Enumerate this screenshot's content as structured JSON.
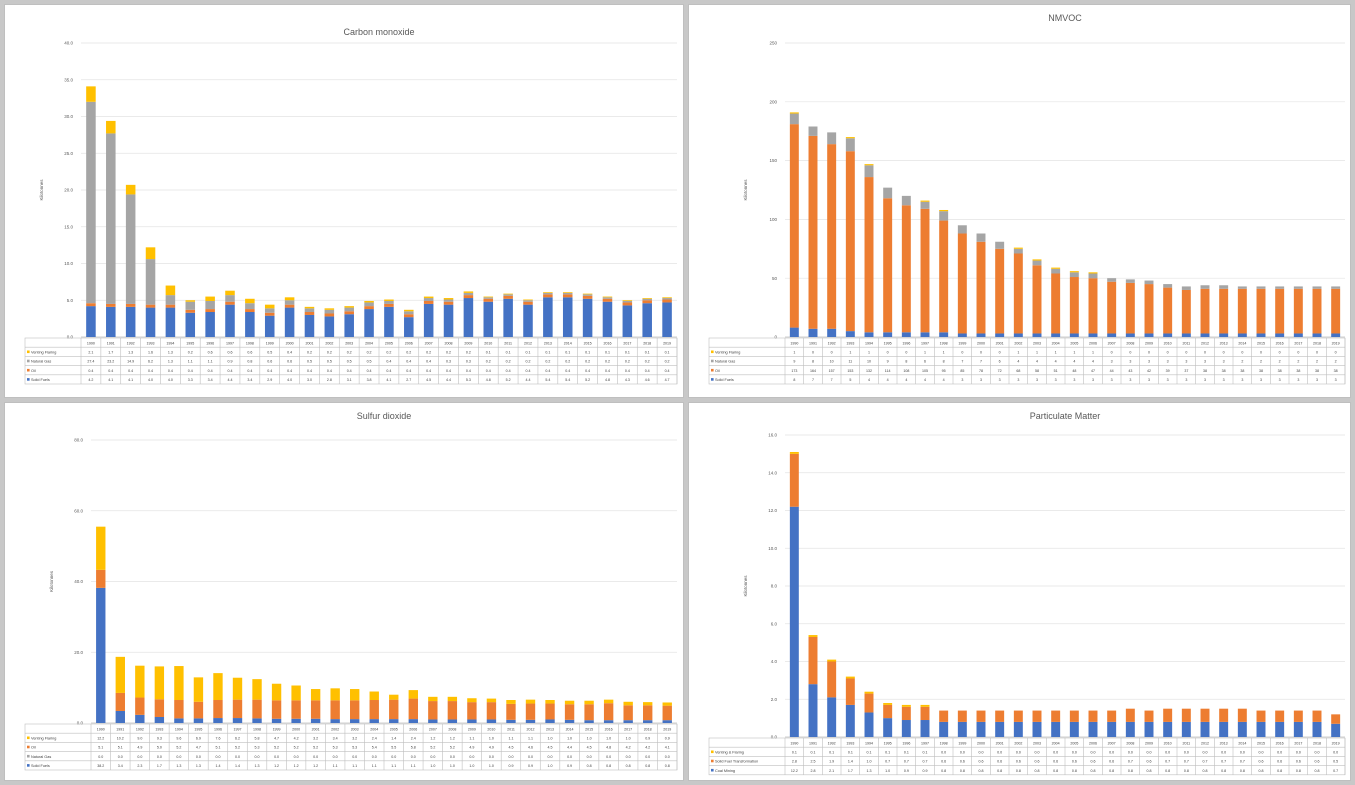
{
  "colors": {
    "blue": "#4472c4",
    "orange": "#ed7d31",
    "gray": "#a5a5a5",
    "yellow": "#ffc000"
  },
  "chart_data": [
    {
      "type": "bar",
      "stacked": true,
      "title": "Carbon monoxide",
      "ylabel": "Kilotonnes",
      "ylim": [
        0,
        40
      ],
      "yticks": [
        "0.0",
        "5.0",
        "10.0",
        "15.0",
        "20.0",
        "25.0",
        "30.0",
        "35.0",
        "40.0"
      ],
      "categories": [
        "1990",
        "1991",
        "1992",
        "1993",
        "1994",
        "1995",
        "1996",
        "1997",
        "1998",
        "1999",
        "2000",
        "2001",
        "2002",
        "2003",
        "2004",
        "2005",
        "2006",
        "2007",
        "2008",
        "2009",
        "2010",
        "2011",
        "2012",
        "2013",
        "2014",
        "2015",
        "2016",
        "2017",
        "2018",
        "2019"
      ],
      "series": [
        {
          "name": "Solid Fuels",
          "color": "#4472c4",
          "values": [
            4.2,
            4.1,
            4.1,
            4.0,
            4.0,
            3.3,
            3.4,
            4.4,
            3.4,
            2.9,
            4.0,
            3.0,
            2.8,
            3.1,
            3.8,
            4.1,
            2.7,
            4.5,
            4.4,
            5.3,
            4.8,
            5.2,
            4.4,
            5.4,
            5.4,
            5.2,
            4.8,
            4.3,
            4.6,
            4.7
          ]
        },
        {
          "name": "Oil",
          "color": "#ed7d31",
          "values": [
            0.4,
            0.4,
            0.4,
            0.4,
            0.4,
            0.4,
            0.4,
            0.4,
            0.4,
            0.4,
            0.4,
            0.4,
            0.4,
            0.4,
            0.4,
            0.4,
            0.4,
            0.4,
            0.4,
            0.4,
            0.4,
            0.4,
            0.4,
            0.4,
            0.4,
            0.4,
            0.4,
            0.4,
            0.4,
            0.4
          ]
        },
        {
          "name": "Natural Gas",
          "color": "#a5a5a5",
          "values": [
            27.4,
            23.2,
            14.9,
            6.2,
            1.3,
            1.1,
            1.1,
            0.9,
            0.8,
            0.6,
            0.6,
            0.5,
            0.5,
            0.5,
            0.5,
            0.4,
            0.4,
            0.4,
            0.3,
            0.3,
            0.2,
            0.2,
            0.2,
            0.2,
            0.2,
            0.2,
            0.2,
            0.2,
            0.2,
            0.2
          ]
        },
        {
          "name": "Venting Flaring",
          "color": "#ffc000",
          "values": [
            2.1,
            1.7,
            1.3,
            1.6,
            1.3,
            0.2,
            0.6,
            0.6,
            0.6,
            0.5,
            0.4,
            0.2,
            0.2,
            0.2,
            0.2,
            0.2,
            0.2,
            0.2,
            0.2,
            0.2,
            0.1,
            0.1,
            0.1,
            0.1,
            0.1,
            0.1,
            0.1,
            0.1,
            0.1,
            0.1
          ]
        }
      ]
    },
    {
      "type": "bar",
      "stacked": true,
      "title": "NMVOC",
      "ylabel": "Kilotonnes",
      "ylim": [
        0,
        250
      ],
      "yticks": [
        "0",
        "50",
        "100",
        "150",
        "200",
        "250"
      ],
      "categories": [
        "1990",
        "1991",
        "1992",
        "1993",
        "1994",
        "1995",
        "1996",
        "1997",
        "1998",
        "1999",
        "2000",
        "2001",
        "2002",
        "2003",
        "2004",
        "2005",
        "2006",
        "2007",
        "2008",
        "2009",
        "2010",
        "2011",
        "2012",
        "2013",
        "2014",
        "2015",
        "2016",
        "2017",
        "2018",
        "2019"
      ],
      "series": [
        {
          "name": "Solid Fuels",
          "color": "#4472c4",
          "values": [
            8,
            7,
            7,
            5,
            4,
            4,
            4,
            4,
            4,
            3,
            3,
            3,
            3,
            3,
            3,
            3,
            3,
            3,
            3,
            3,
            3,
            3,
            3,
            3,
            3,
            3,
            3,
            3,
            3,
            3
          ]
        },
        {
          "name": "Oil",
          "color": "#ed7d31",
          "values": [
            173,
            164,
            157,
            153,
            132,
            114,
            108,
            105,
            95,
            85,
            78,
            72,
            68,
            58,
            51,
            48,
            47,
            44,
            43,
            42,
            39,
            37,
            38,
            38,
            38,
            38,
            38,
            38,
            38,
            38
          ]
        },
        {
          "name": "Natural Gas",
          "color": "#a5a5a5",
          "values": [
            9,
            8,
            10,
            11,
            10,
            9,
            8,
            6,
            8,
            7,
            7,
            6,
            4,
            4,
            4,
            4,
            4,
            3,
            3,
            3,
            3,
            3,
            3,
            3,
            2,
            2,
            2,
            2,
            2,
            2
          ]
        },
        {
          "name": "Venting Flaring",
          "color": "#ffc000",
          "values": [
            1,
            0,
            0,
            1,
            1,
            0,
            0,
            1,
            1,
            0,
            0,
            0,
            1,
            1,
            1,
            1,
            1,
            0,
            0,
            0,
            0,
            0,
            0,
            0,
            0,
            0,
            0,
            0,
            0,
            0
          ]
        }
      ]
    },
    {
      "type": "bar",
      "stacked": true,
      "title": "Sulfur dioxide",
      "ylabel": "Kilotonnes",
      "ylim": [
        0,
        80
      ],
      "yticks": [
        "0.0",
        "20.0",
        "40.0",
        "60.0",
        "80.0"
      ],
      "categories": [
        "1990",
        "1991",
        "1992",
        "1993",
        "1994",
        "1995",
        "1996",
        "1997",
        "1998",
        "1999",
        "2000",
        "2001",
        "2002",
        "2003",
        "2004",
        "2005",
        "2006",
        "2007",
        "2008",
        "2009",
        "2010",
        "2011",
        "2012",
        "2013",
        "2014",
        "2015",
        "2016",
        "2017",
        "2018",
        "2019"
      ],
      "series": [
        {
          "name": "Solid Fuels",
          "color": "#4472c4",
          "values": [
            38.2,
            3.4,
            2.3,
            1.7,
            1.3,
            1.3,
            1.4,
            1.4,
            1.3,
            1.2,
            1.2,
            1.2,
            1.1,
            1.1,
            1.1,
            1.1,
            1.1,
            1.0,
            1.0,
            1.0,
            1.0,
            0.9,
            0.9,
            1.0,
            0.9,
            0.8,
            0.8,
            0.8,
            0.8,
            0.8
          ]
        },
        {
          "name": "Natural Gas",
          "color": "#a5a5a5",
          "values": [
            0.0,
            0.0,
            0.0,
            0.0,
            0.0,
            0.0,
            0.0,
            0.0,
            0.0,
            0.0,
            0.0,
            0.0,
            0.0,
            0.0,
            0.0,
            0.0,
            0.0,
            0.0,
            0.0,
            0.0,
            0.0,
            0.0,
            0.0,
            0.0,
            0.0,
            0.0,
            0.0,
            0.0,
            0.0,
            0.0
          ]
        },
        {
          "name": "Oil",
          "color": "#ed7d31",
          "values": [
            5.1,
            5.1,
            4.9,
            5.0,
            5.2,
            4.7,
            5.1,
            5.2,
            5.3,
            5.2,
            5.2,
            5.2,
            5.3,
            5.3,
            5.4,
            5.5,
            5.8,
            5.2,
            5.2,
            4.9,
            4.9,
            4.5,
            4.6,
            4.5,
            4.4,
            4.5,
            4.8,
            4.2,
            4.2,
            4.1
          ]
        },
        {
          "name": "Venting Flaring",
          "color": "#ffc000",
          "values": [
            12.2,
            10.2,
            9.0,
            9.3,
            9.6,
            6.9,
            7.6,
            6.2,
            5.8,
            4.7,
            4.2,
            3.2,
            3.4,
            3.2,
            2.4,
            1.4,
            2.4,
            1.2,
            1.2,
            1.1,
            1.0,
            1.1,
            1.1,
            1.0,
            1.0,
            1.0,
            1.0,
            1.0,
            0.9,
            0.9
          ]
        }
      ]
    },
    {
      "type": "bar",
      "stacked": true,
      "title": "Particulate Matter",
      "ylabel": "Kilotonnes",
      "ylim": [
        0,
        16
      ],
      "yticks": [
        "0.0",
        "2.0",
        "4.0",
        "6.0",
        "8.0",
        "10.0",
        "12.0",
        "14.0",
        "16.0"
      ],
      "categories": [
        "1990",
        "1991",
        "1992",
        "1993",
        "1994",
        "1995",
        "1996",
        "1997",
        "1998",
        "1999",
        "2000",
        "2001",
        "2002",
        "2003",
        "2004",
        "2005",
        "2006",
        "2007",
        "2008",
        "2009",
        "2010",
        "2011",
        "2012",
        "2013",
        "2014",
        "2015",
        "2016",
        "2017",
        "2018",
        "2019"
      ],
      "series": [
        {
          "name": "Coal Mining",
          "color": "#4472c4",
          "values": [
            12.2,
            2.8,
            2.1,
            1.7,
            1.3,
            1.0,
            0.9,
            0.9,
            0.8,
            0.8,
            0.8,
            0.8,
            0.8,
            0.8,
            0.8,
            0.8,
            0.8,
            0.8,
            0.8,
            0.8,
            0.8,
            0.8,
            0.8,
            0.8,
            0.8,
            0.8,
            0.8,
            0.8,
            0.8,
            0.7
          ]
        },
        {
          "name": "Solid Fuel Transformation",
          "color": "#ed7d31",
          "values": [
            2.8,
            2.5,
            1.9,
            1.4,
            1.0,
            0.7,
            0.7,
            0.7,
            0.6,
            0.6,
            0.6,
            0.6,
            0.6,
            0.6,
            0.6,
            0.6,
            0.6,
            0.6,
            0.7,
            0.6,
            0.7,
            0.7,
            0.7,
            0.7,
            0.7,
            0.6,
            0.6,
            0.6,
            0.6,
            0.5
          ]
        },
        {
          "name": "Venting & Flaring",
          "color": "#ffc000",
          "values": [
            0.1,
            0.1,
            0.1,
            0.1,
            0.1,
            0.1,
            0.1,
            0.1,
            0.0,
            0.0,
            0.0,
            0.0,
            0.0,
            0.0,
            0.0,
            0.0,
            0.0,
            0.0,
            0.0,
            0.0,
            0.0,
            0.0,
            0.0,
            0.0,
            0.0,
            0.0,
            0.0,
            0.0,
            0.0,
            0.0
          ]
        }
      ]
    }
  ]
}
